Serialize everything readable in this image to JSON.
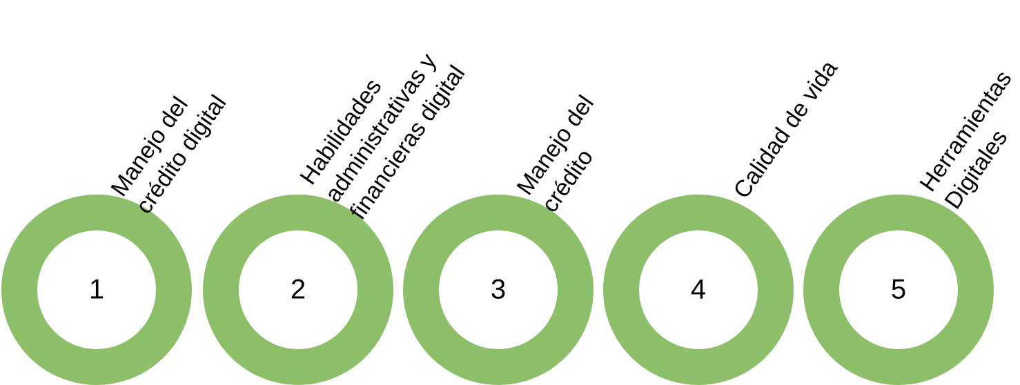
{
  "items": [
    {
      "number": "1",
      "label": [
        "Manejo del",
        "crédito digital"
      ]
    },
    {
      "number": "2",
      "label": [
        "Habilidades",
        "administrativas y",
        "financieras digital"
      ]
    },
    {
      "number": "3",
      "label": [
        "Manejo del",
        "crédito"
      ]
    },
    {
      "number": "4",
      "label": [
        "Calidad de vida"
      ]
    },
    {
      "number": "5",
      "label": [
        "Herramientas",
        "Digitales"
      ]
    }
  ]
}
